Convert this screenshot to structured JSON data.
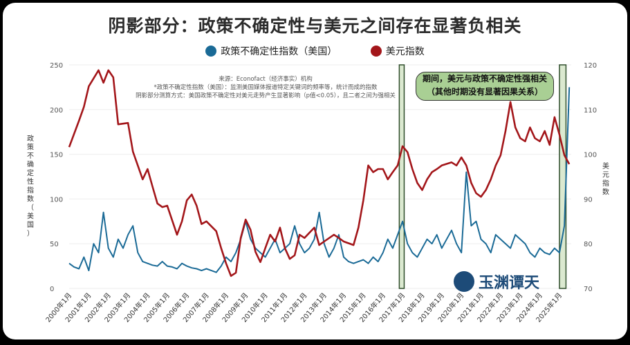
{
  "chart_data": {
    "type": "line",
    "title": "阴影部分：政策不确定性与美元之间存在显著负相关",
    "notes": [
      "来源：Econofact（经济事实）机构",
      "*政策不确定性指数（美国）：监测美国媒体报道特定关键词的频率等，统计而成的指数",
      "阴影部分测算方式：美国政策不确定性对美元走势产生显著影响（p值<0.05），且二者之间为强相关"
    ],
    "callout": [
      "期间，美元与政策不确定性强相关",
      "（其他时期没有显著因果关系）"
    ],
    "ylabel_left": "政策不确定性指数（美国）",
    "ylabel_right": "美元指数",
    "ylim_left": [
      0,
      250
    ],
    "ylim_right": [
      70,
      120
    ],
    "yticks_left": [
      "0",
      "50",
      "100",
      "150",
      "200",
      "250"
    ],
    "yticks_right": [
      "70",
      "80",
      "90",
      "100",
      "110",
      "120"
    ],
    "xticks": [
      "2000年1月",
      "2001年1月",
      "2002年1月",
      "2003年1月",
      "2004年1月",
      "2005年1月",
      "2006年1月",
      "2007年1月",
      "2008年1月",
      "2009年1月",
      "2010年1月",
      "2011年1月",
      "2012年1月",
      "2013年1月",
      "2014年1月",
      "2015年1月",
      "2016年1月",
      "2017年1月",
      "2018年1月",
      "2019年1月",
      "2020年1月",
      "2021年1月",
      "2022年1月",
      "2023年1月",
      "2024年1月",
      "2025年1月"
    ],
    "shaded_periods": [
      [
        "2016-11",
        "2017-02"
      ],
      [
        "2025-01",
        "2025-05"
      ]
    ],
    "grid": "horizontal",
    "legend_placement": "top",
    "series": [
      {
        "name": "政策不确定性指数（美国）",
        "axis": "left",
        "color": "#1a6a96",
        "x": [
          "2000-01",
          "2000-04",
          "2000-07",
          "2000-10",
          "2001-01",
          "2001-04",
          "2001-07",
          "2001-10",
          "2002-01",
          "2002-04",
          "2002-07",
          "2002-10",
          "2003-01",
          "2003-04",
          "2003-07",
          "2003-10",
          "2004-01",
          "2004-04",
          "2004-07",
          "2004-10",
          "2005-01",
          "2005-04",
          "2005-07",
          "2005-10",
          "2006-01",
          "2006-04",
          "2006-07",
          "2006-10",
          "2007-01",
          "2007-04",
          "2007-07",
          "2007-10",
          "2008-01",
          "2008-04",
          "2008-07",
          "2008-10",
          "2009-01",
          "2009-04",
          "2009-07",
          "2009-10",
          "2010-01",
          "2010-04",
          "2010-07",
          "2010-10",
          "2011-01",
          "2011-04",
          "2011-07",
          "2011-10",
          "2012-01",
          "2012-04",
          "2012-07",
          "2012-10",
          "2013-01",
          "2013-04",
          "2013-07",
          "2013-10",
          "2014-01",
          "2014-04",
          "2014-07",
          "2014-10",
          "2015-01",
          "2015-04",
          "2015-07",
          "2015-10",
          "2016-01",
          "2016-04",
          "2016-07",
          "2016-10",
          "2017-01",
          "2017-04",
          "2017-07",
          "2017-10",
          "2018-01",
          "2018-04",
          "2018-07",
          "2018-10",
          "2019-01",
          "2019-04",
          "2019-07",
          "2019-10",
          "2020-01",
          "2020-04",
          "2020-07",
          "2020-10",
          "2021-01",
          "2021-04",
          "2021-07",
          "2021-10",
          "2022-01",
          "2022-04",
          "2022-07",
          "2022-10",
          "2023-01",
          "2023-04",
          "2023-07",
          "2023-10",
          "2024-01",
          "2024-04",
          "2024-07",
          "2024-10",
          "2025-01",
          "2025-04",
          "2025-07"
        ],
        "values": [
          28,
          24,
          22,
          35,
          20,
          50,
          40,
          85,
          45,
          35,
          55,
          45,
          60,
          70,
          40,
          30,
          28,
          26,
          25,
          30,
          25,
          24,
          22,
          28,
          25,
          23,
          22,
          20,
          22,
          20,
          18,
          25,
          35,
          30,
          40,
          55,
          75,
          55,
          45,
          40,
          35,
          45,
          55,
          40,
          45,
          50,
          70,
          50,
          40,
          45,
          55,
          85,
          50,
          35,
          45,
          60,
          35,
          30,
          28,
          30,
          32,
          28,
          35,
          30,
          40,
          55,
          45,
          60,
          75,
          50,
          40,
          35,
          45,
          55,
          50,
          60,
          45,
          55,
          65,
          50,
          40,
          130,
          70,
          75,
          55,
          50,
          40,
          60,
          55,
          50,
          45,
          60,
          55,
          50,
          40,
          35,
          45,
          40,
          38,
          45,
          40,
          70,
          225
        ]
      },
      {
        "name": "美元指数",
        "axis": "right",
        "color": "#a3161a",
        "x": [
          "2000-01",
          "2000-07",
          "2000-10",
          "2001-01",
          "2001-07",
          "2001-10",
          "2002-01",
          "2002-04",
          "2002-07",
          "2003-01",
          "2003-04",
          "2003-10",
          "2004-01",
          "2004-04",
          "2004-07",
          "2004-10",
          "2005-01",
          "2005-07",
          "2005-10",
          "2006-01",
          "2006-04",
          "2006-07",
          "2006-10",
          "2007-01",
          "2007-07",
          "2007-10",
          "2008-01",
          "2008-04",
          "2008-07",
          "2008-10",
          "2009-01",
          "2009-04",
          "2009-07",
          "2009-10",
          "2010-01",
          "2010-04",
          "2010-07",
          "2010-10",
          "2011-01",
          "2011-04",
          "2011-07",
          "2011-10",
          "2012-01",
          "2012-07",
          "2012-10",
          "2013-01",
          "2013-07",
          "2013-10",
          "2014-01",
          "2014-07",
          "2014-10",
          "2015-01",
          "2015-04",
          "2015-07",
          "2015-10",
          "2016-01",
          "2016-04",
          "2016-07",
          "2016-10",
          "2017-01",
          "2017-04",
          "2017-07",
          "2017-10",
          "2018-01",
          "2018-04",
          "2018-07",
          "2018-10",
          "2019-01",
          "2019-07",
          "2019-10",
          "2020-01",
          "2020-04",
          "2020-07",
          "2020-10",
          "2021-01",
          "2021-04",
          "2021-07",
          "2021-10",
          "2022-01",
          "2022-04",
          "2022-07",
          "2022-10",
          "2023-01",
          "2023-04",
          "2023-07",
          "2023-10",
          "2024-01",
          "2024-04",
          "2024-07",
          "2024-10",
          "2025-01",
          "2025-04",
          "2025-07"
        ],
        "values": [
          101.6,
          107.5,
          110.6,
          115.2,
          118.8,
          116,
          118.8,
          117.2,
          106.7,
          107,
          100.6,
          94.4,
          96.7,
          92.8,
          89,
          88.2,
          88.5,
          82,
          85,
          89.7,
          91,
          88.5,
          84.4,
          85,
          82.8,
          79,
          75.6,
          72.8,
          73.5,
          81.3,
          85.4,
          83.1,
          78.2,
          75.9,
          79,
          82,
          80.5,
          83.6,
          79,
          76.6,
          77.4,
          82,
          81.3,
          83.6,
          79.7,
          80.5,
          82,
          81.3,
          80.5,
          79.7,
          83.6,
          89.7,
          97.5,
          96,
          96.7,
          96.7,
          94.4,
          96,
          97.5,
          101.8,
          100.5,
          96.7,
          93.6,
          92,
          94.4,
          96,
          96.7,
          97.5,
          98.2,
          97.5,
          99.3,
          97.5,
          93.6,
          91.3,
          90.5,
          92,
          94.4,
          97.5,
          99.8,
          105.2,
          111.7,
          106,
          103.6,
          102.9,
          106,
          103.6,
          102.9,
          105.2,
          102.1,
          108.3,
          104.4,
          99.8,
          97.8
        ]
      }
    ]
  },
  "logo": {
    "text": "玉渊谭天"
  }
}
